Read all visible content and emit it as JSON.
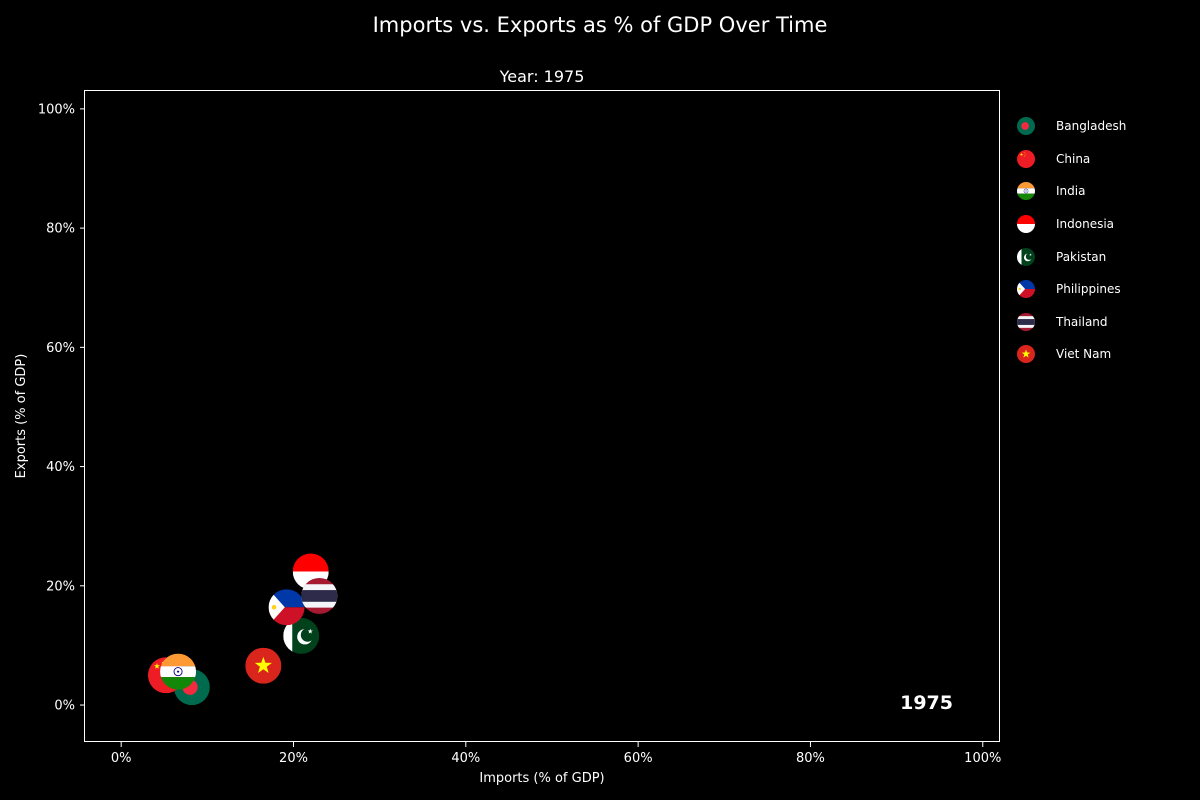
{
  "chart_data": {
    "type": "scatter",
    "title": "Imports vs. Exports as % of GDP Over Time",
    "subtitle": "Year: 1975",
    "xlabel": "Imports (% of GDP)",
    "ylabel": "Exports (% of GDP)",
    "xlim": [
      -4.2,
      102
    ],
    "ylim": [
      -6.2,
      103
    ],
    "x_ticks": [
      0,
      20,
      40,
      60,
      80,
      100
    ],
    "y_ticks": [
      0,
      20,
      40,
      60,
      80,
      100
    ],
    "x_tick_labels": [
      "0%",
      "20%",
      "40%",
      "60%",
      "80%",
      "100%"
    ],
    "y_tick_labels": [
      "0%",
      "20%",
      "40%",
      "60%",
      "80%",
      "100%"
    ],
    "year_annotation": "1975",
    "grid": false,
    "legend_position": "outside-right",
    "marker": "country-flag",
    "points": [
      {
        "name": "Bangladesh",
        "x": 8.2,
        "y": 3.0,
        "flag": "bangladesh"
      },
      {
        "name": "China",
        "x": 5.2,
        "y": 5.0,
        "flag": "china"
      },
      {
        "name": "India",
        "x": 6.6,
        "y": 5.6,
        "flag": "india"
      },
      {
        "name": "Indonesia",
        "x": 22.0,
        "y": 22.4,
        "flag": "indonesia"
      },
      {
        "name": "Pakistan",
        "x": 20.9,
        "y": 11.6,
        "flag": "pakistan"
      },
      {
        "name": "Philippines",
        "x": 19.2,
        "y": 16.4,
        "flag": "philippines"
      },
      {
        "name": "Thailand",
        "x": 23.0,
        "y": 18.3,
        "flag": "thailand"
      },
      {
        "name": "Viet Nam",
        "x": 16.5,
        "y": 6.6,
        "flag": "vietnam"
      }
    ],
    "legend": [
      "Bangladesh",
      "China",
      "India",
      "Indonesia",
      "Pakistan",
      "Philippines",
      "Thailand",
      "Viet Nam"
    ]
  }
}
